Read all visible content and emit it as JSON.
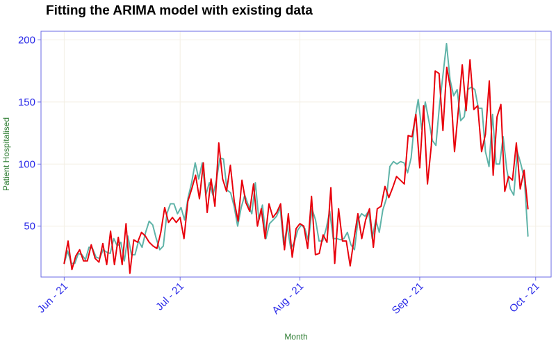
{
  "chart_data": {
    "type": "line",
    "title": "Fitting the ARIMA model with existing data",
    "xlabel": "Month",
    "ylabel": "Patient Hospitalised",
    "x_start": "2021-06-01",
    "x_end": "2021-09-29",
    "x_ticks": [
      {
        "date": "2021-06-01",
        "label": "Jun - 21"
      },
      {
        "date": "2021-07-01",
        "label": "Jul - 21"
      },
      {
        "date": "2021-08-01",
        "label": "Aug - 21"
      },
      {
        "date": "2021-09-01",
        "label": "Sep - 21"
      },
      {
        "date": "2021-10-01",
        "label": "Oct - 21"
      }
    ],
    "y_ticks": [
      50,
      100,
      150,
      200
    ],
    "ylim": [
      9,
      207
    ],
    "xlim": [
      "2021-05-26",
      "2021-10-05"
    ],
    "grid": true,
    "series": [
      {
        "name": "",
        "color": "#5fb3a8",
        "values": [
          20,
          30,
          20,
          20,
          28,
          27,
          23,
          33,
          32,
          25,
          24,
          31,
          29,
          28,
          40,
          34,
          37,
          22,
          42,
          27,
          27,
          38,
          33,
          45,
          54,
          51,
          40,
          31,
          34,
          60,
          68,
          68,
          60,
          65,
          55,
          73,
          85,
          101,
          88,
          101,
          75,
          85,
          75,
          87,
          105,
          104,
          79,
          77,
          66,
          50,
          65,
          75,
          67,
          60,
          85,
          55,
          67,
          40,
          52,
          55,
          58,
          65,
          35,
          50,
          32,
          37,
          47,
          51,
          48,
          38,
          64,
          55,
          38,
          38,
          48,
          62,
          40,
          40,
          39,
          40,
          45,
          35,
          31,
          55,
          60,
          58,
          62,
          40,
          55,
          45,
          63,
          72,
          98,
          102,
          100,
          102,
          101,
          93,
          105,
          135,
          152,
          128,
          150,
          135,
          119,
          115,
          147,
          172,
          197,
          168,
          155,
          160,
          135,
          138,
          160,
          162,
          160,
          145,
          145,
          110,
          98,
          140,
          100,
          100,
          122,
          96,
          80,
          75,
          110,
          100,
          88,
          42
        ],
        "marker": false
      },
      {
        "name": "",
        "color": "#e8000b",
        "values": [
          20,
          38,
          15,
          26,
          31,
          22,
          22,
          35,
          24,
          21,
          36,
          19,
          46,
          19,
          41,
          19,
          52,
          12,
          39,
          37,
          45,
          42,
          37,
          34,
          32,
          45,
          65,
          53,
          57,
          53,
          57,
          40,
          70,
          80,
          91,
          72,
          101,
          61,
          88,
          66,
          117,
          88,
          78,
          99,
          70,
          54,
          87,
          69,
          62,
          84,
          50,
          64,
          40,
          68,
          57,
          61,
          68,
          31,
          60,
          25,
          48,
          52,
          50,
          32,
          74,
          27,
          28,
          43,
          37,
          81,
          20,
          64,
          38,
          38,
          18,
          40,
          60,
          40,
          55,
          64,
          33,
          64,
          66,
          82,
          73,
          81,
          90,
          87,
          84,
          123,
          122,
          140,
          97,
          147,
          84,
          115,
          175,
          173,
          127,
          178,
          160,
          110,
          144,
          180,
          143,
          184,
          144,
          147,
          110,
          124,
          167,
          91,
          138,
          148,
          78,
          90,
          87,
          117,
          80,
          95,
          64
        ],
        "marker": false
      }
    ]
  }
}
